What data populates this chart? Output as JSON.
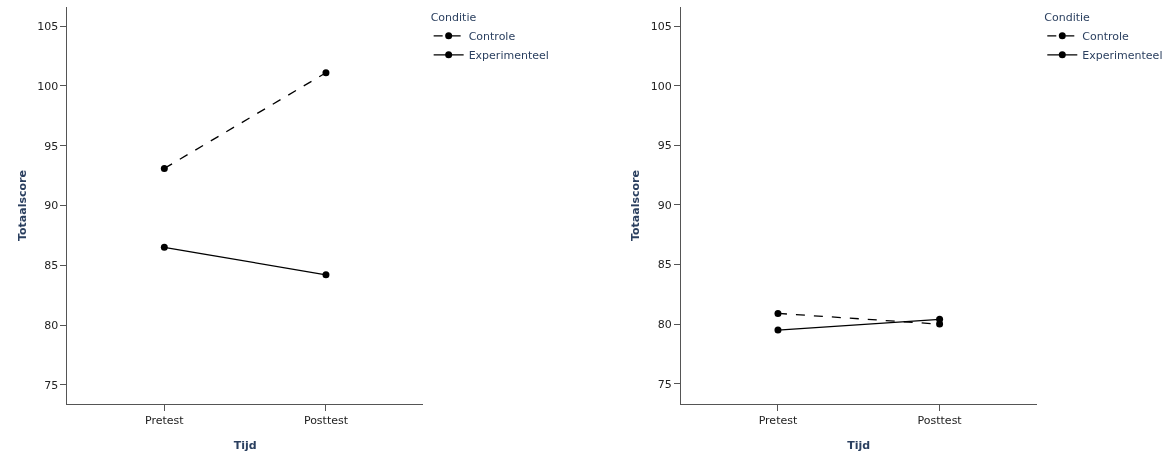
{
  "chart_data": [
    {
      "type": "line",
      "xlabel": "Tijd",
      "ylabel": "Totaalscore",
      "legend_title": "Conditie",
      "categories": [
        "Pretest",
        "Posttest"
      ],
      "series": [
        {
          "name": "Controle",
          "color": "#000000",
          "values": [
            93.1,
            101.1
          ],
          "line_style": "dashed"
        },
        {
          "name": "Experimenteel",
          "color": "#000000",
          "values": [
            86.5,
            84.2
          ],
          "line_style": "solid"
        }
      ],
      "ylim": [
        73.4,
        106.6
      ],
      "yticks": [
        75,
        80,
        85,
        90,
        95,
        100,
        105
      ],
      "legend": "top right",
      "marker": "circle"
    },
    {
      "type": "line",
      "xlabel": "Tijd",
      "ylabel": "Totaalscore",
      "legend_title": "Conditie",
      "categories": [
        "Pretest",
        "Posttest"
      ],
      "series": [
        {
          "name": "Controle",
          "color": "#000000",
          "values": [
            80.9,
            80.0
          ],
          "line_style": "dashed"
        },
        {
          "name": "Experimenteel",
          "color": "#000000",
          "values": [
            79.5,
            80.4
          ],
          "line_style": "solid"
        }
      ],
      "ylim": [
        73.3,
        106.6
      ],
      "yticks": [
        75,
        80,
        85,
        90,
        95,
        100,
        105
      ],
      "legend": "top right",
      "marker": "circle"
    }
  ]
}
